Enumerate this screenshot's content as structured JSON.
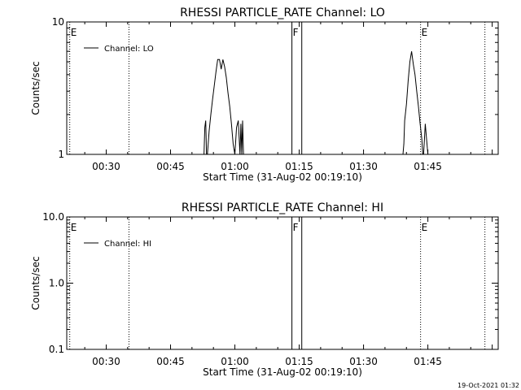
{
  "footer_timestamp": "19-Oct-2021 01:32",
  "chart_data": [
    {
      "type": "line",
      "title": "RHESSI PARTICLE_RATE Channel: LO",
      "xlabel": "Start Time (31-Aug-02 00:19:10)",
      "ylabel": "Counts/sec",
      "y_scale": "log",
      "ylim": [
        1,
        10
      ],
      "xlim_min": [
        20.8,
        121.4
      ],
      "x_ticks": [
        {
          "min": 30,
          "label": "00:30"
        },
        {
          "min": 45,
          "label": "00:45"
        },
        {
          "min": 60,
          "label": "01:00"
        },
        {
          "min": 75,
          "label": "01:15"
        },
        {
          "min": 90,
          "label": "01:30"
        },
        {
          "min": 105,
          "label": "01:45"
        }
      ],
      "y_ticks": [
        {
          "value": 1,
          "label": "1"
        },
        {
          "value": 10,
          "label": "10"
        }
      ],
      "legend": {
        "label": "Channel: LO",
        "position": "top-left"
      },
      "vertical_lines": [
        {
          "min": 21.5,
          "style": "dotted",
          "label": "E"
        },
        {
          "min": 35.3,
          "style": "dotted",
          "label": ""
        },
        {
          "min": 73.3,
          "style": "solid",
          "label": "F"
        },
        {
          "min": 75.6,
          "style": "solid",
          "label": ""
        },
        {
          "min": 103.3,
          "style": "dotted",
          "label": "E"
        },
        {
          "min": 118.3,
          "style": "dotted",
          "label": ""
        }
      ],
      "series": [
        {
          "x": [
            52.8,
            53.0,
            53.2,
            53.4,
            53.6,
            54.0,
            54.4,
            54.8,
            55.2,
            55.6,
            56.0,
            56.4,
            56.8,
            57.2,
            57.6,
            58.0,
            58.4,
            58.8,
            59.2,
            59.6,
            60.0,
            60.4,
            60.8,
            61.2,
            61.4,
            61.6,
            61.8,
            62.0,
            62.2
          ],
          "y": [
            1,
            1.6,
            1.8,
            1,
            1,
            1.5,
            2.0,
            2.6,
            3.3,
            4.2,
            5.2,
            5.2,
            4.4,
            5.2,
            4.6,
            3.8,
            2.9,
            2.3,
            1.7,
            1.2,
            1,
            1.6,
            1.8,
            1,
            1.7,
            1,
            1.8,
            1,
            1
          ],
          "segments_note": ""
        },
        {
          "x": [
            99.2,
            99.4,
            99.6,
            100.0,
            100.4,
            100.8,
            101.2,
            101.6,
            102.0,
            102.4,
            102.8,
            103.2,
            103.6,
            103.8,
            104.0,
            104.2,
            104.4,
            104.8,
            105.0
          ],
          "y": [
            1,
            1.2,
            1.8,
            2.4,
            3.6,
            5.0,
            6.0,
            4.8,
            4.0,
            3.0,
            2.3,
            1.7,
            1.3,
            1,
            1,
            1.3,
            1.7,
            1.2,
            1
          ],
          "segments_note": ""
        }
      ]
    },
    {
      "type": "line",
      "title": "RHESSI PARTICLE_RATE Channel: HI",
      "xlabel": "Start Time (31-Aug-02 00:19:10)",
      "ylabel": "Counts/sec",
      "y_scale": "log",
      "ylim": [
        0.1,
        10
      ],
      "xlim_min": [
        20.8,
        121.4
      ],
      "x_ticks": [
        {
          "min": 30,
          "label": "00:30"
        },
        {
          "min": 45,
          "label": "00:45"
        },
        {
          "min": 60,
          "label": "01:00"
        },
        {
          "min": 75,
          "label": "01:15"
        },
        {
          "min": 90,
          "label": "01:30"
        },
        {
          "min": 105,
          "label": "01:45"
        }
      ],
      "y_ticks": [
        {
          "value": 0.1,
          "label": "0.1"
        },
        {
          "value": 1,
          "label": "1.0"
        },
        {
          "value": 10,
          "label": "10.0"
        }
      ],
      "legend": {
        "label": "Channel: HI",
        "position": "top-left"
      },
      "vertical_lines": [
        {
          "min": 21.5,
          "style": "dotted",
          "label": "E"
        },
        {
          "min": 35.3,
          "style": "dotted",
          "label": ""
        },
        {
          "min": 73.3,
          "style": "solid",
          "label": "F"
        },
        {
          "min": 75.6,
          "style": "solid",
          "label": ""
        },
        {
          "min": 103.3,
          "style": "dotted",
          "label": "E"
        },
        {
          "min": 118.3,
          "style": "dotted",
          "label": ""
        }
      ],
      "series": []
    }
  ]
}
